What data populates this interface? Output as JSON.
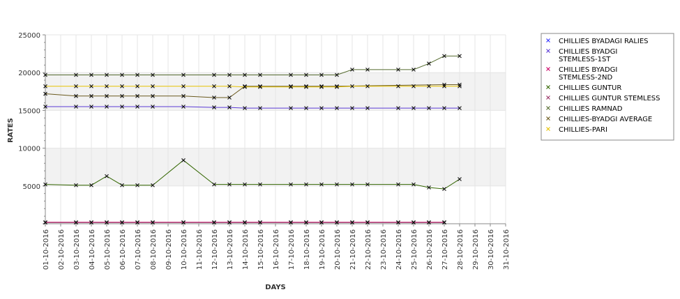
{
  "chart_data": {
    "type": "line",
    "xlabel": "DAYS",
    "ylabel": "RATES",
    "ylim": [
      0,
      25000
    ],
    "yticks": [
      5000,
      10000,
      15000,
      20000,
      25000
    ],
    "grid": true,
    "legend_position": "right",
    "categories": [
      "01-10-2016",
      "02-10-2016",
      "03-10-2016",
      "04-10-2016",
      "05-10-2016",
      "06-10-2016",
      "07-10-2016",
      "08-10-2016",
      "09-10-2016",
      "10-10-2016",
      "11-10-2016",
      "12-10-2016",
      "13-10-2016",
      "14-10-2016",
      "15-10-2016",
      "16-10-2016",
      "17-10-2016",
      "18-10-2016",
      "19-10-2016",
      "20-10-2016",
      "21-10-2016",
      "22-10-2016",
      "23-10-2016",
      "24-10-2016",
      "25-10-2016",
      "26-10-2016",
      "27-10-2016",
      "28-10-2016",
      "29-10-2016",
      "30-10-2016",
      "31-10-2016"
    ],
    "series": [
      {
        "name": "CHILLIES BYADAGI RALIES",
        "color": "#3333ff",
        "values": [
          null,
          null,
          null,
          null,
          null,
          null,
          null,
          null,
          null,
          null,
          null,
          null,
          null,
          null,
          null,
          null,
          null,
          null,
          null,
          null,
          null,
          null,
          null,
          null,
          null,
          null,
          null,
          null,
          null,
          null,
          null
        ]
      },
      {
        "name": "CHILLIES BYADGI STEMLESS-1ST",
        "color": "#5b3bd6",
        "values": [
          15500,
          null,
          15500,
          15500,
          15500,
          15500,
          15500,
          15500,
          null,
          15500,
          null,
          15400,
          15400,
          15300,
          15300,
          null,
          15300,
          15300,
          15300,
          15300,
          15300,
          15300,
          null,
          15300,
          15300,
          15300,
          15300,
          15300,
          null,
          null,
          null
        ]
      },
      {
        "name": "CHILLIES BYADGI STEMLESS-2ND",
        "color": "#cc0066",
        "values": [
          200,
          null,
          200,
          200,
          200,
          200,
          200,
          200,
          null,
          200,
          null,
          200,
          200,
          200,
          200,
          null,
          200,
          200,
          200,
          200,
          200,
          200,
          null,
          200,
          200,
          200,
          200,
          null,
          null,
          null,
          null
        ]
      },
      {
        "name": "CHILLIES GUNTUR",
        "color": "#336600",
        "values": [
          5200,
          null,
          5100,
          5100,
          6300,
          5100,
          5100,
          5100,
          null,
          8400,
          null,
          5200,
          5200,
          5200,
          5200,
          null,
          5200,
          5200,
          5200,
          5200,
          5200,
          5200,
          null,
          5200,
          5200,
          4800,
          4600,
          5900,
          null,
          null,
          null
        ]
      },
      {
        "name": "CHILLIES GUNTUR STEMLESS",
        "color": "#993366",
        "values": [
          150,
          null,
          150,
          150,
          150,
          150,
          150,
          150,
          null,
          150,
          null,
          150,
          150,
          150,
          150,
          null,
          150,
          150,
          150,
          150,
          150,
          150,
          null,
          150,
          150,
          150,
          150,
          null,
          null,
          null,
          null
        ]
      },
      {
        "name": "CHILLIES RAMNAD",
        "color": "#556b2f",
        "values": [
          19700,
          null,
          19700,
          19700,
          19700,
          19700,
          19700,
          19700,
          null,
          19700,
          null,
          19700,
          19700,
          19700,
          19700,
          null,
          19700,
          19700,
          19700,
          19700,
          20400,
          20400,
          null,
          20400,
          20400,
          21200,
          22200,
          22200,
          null,
          null,
          null
        ]
      },
      {
        "name": "CHILLIES-BYADGI AVERAGE",
        "color": "#6b5a1e",
        "values": [
          17200,
          null,
          16900,
          16900,
          16900,
          16900,
          16900,
          16900,
          null,
          16900,
          null,
          16700,
          16700,
          18200,
          18200,
          null,
          18200,
          18200,
          18200,
          18200,
          null,
          null,
          null,
          null,
          null,
          null,
          18400,
          18400,
          null,
          null,
          null
        ]
      },
      {
        "name": "CHILLIES-PARI",
        "color": "#e6c200",
        "values": [
          18200,
          null,
          18200,
          18200,
          18200,
          18200,
          18200,
          18200,
          null,
          18200,
          null,
          18200,
          18200,
          18100,
          18100,
          null,
          18100,
          18100,
          18100,
          18100,
          18200,
          18200,
          null,
          18200,
          18200,
          18200,
          18200,
          18200,
          null,
          null,
          null
        ]
      }
    ]
  }
}
